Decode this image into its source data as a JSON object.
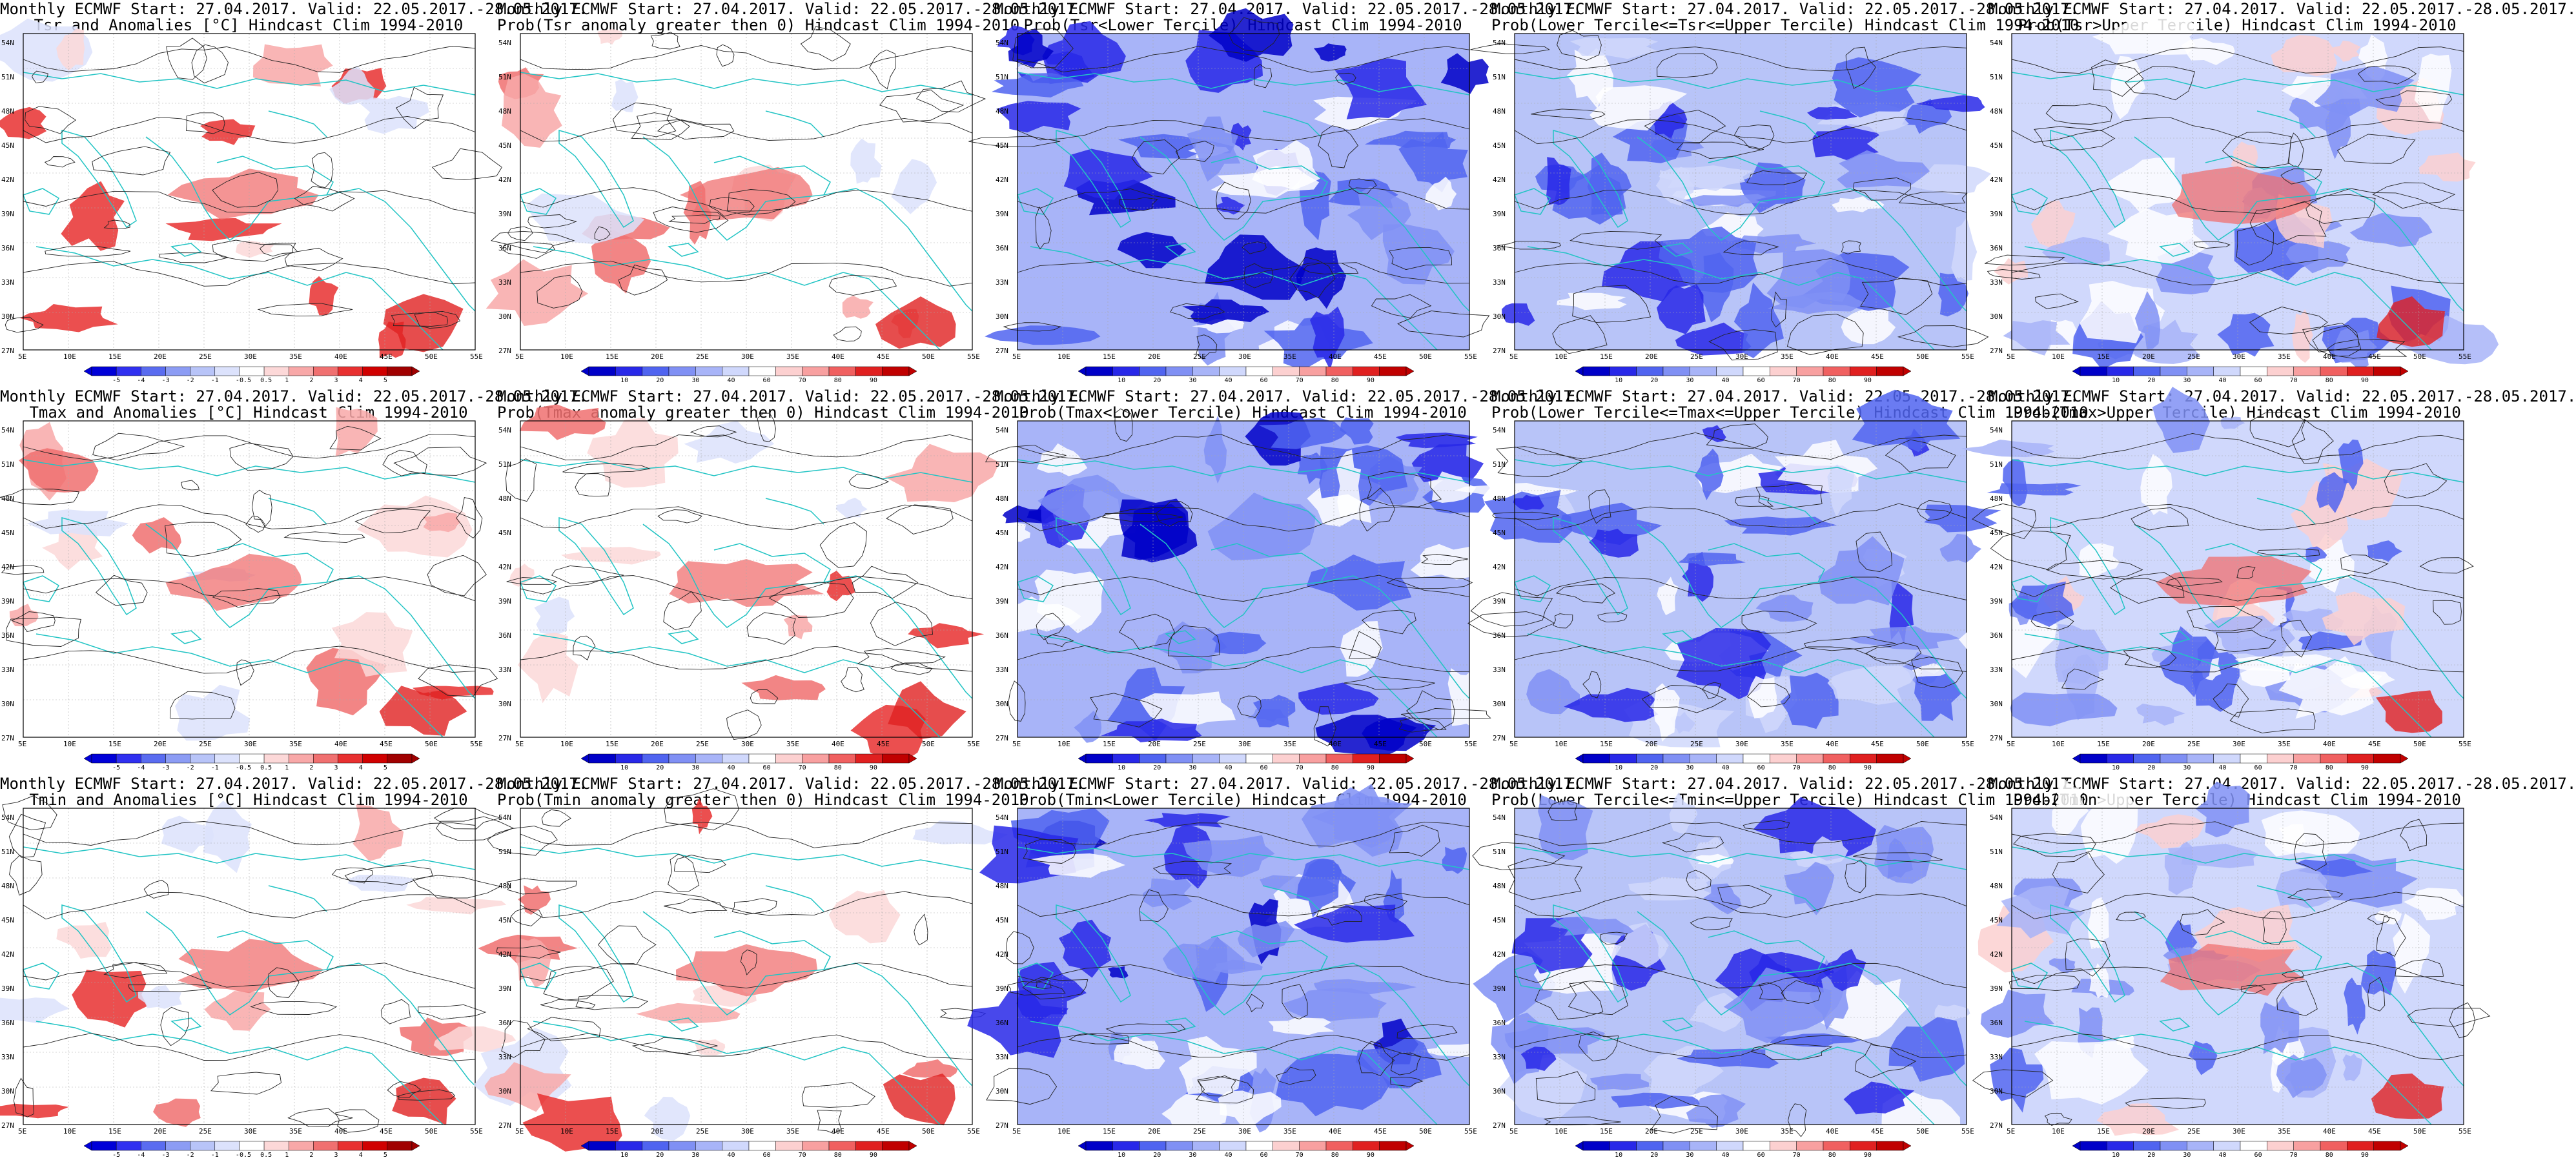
{
  "panels": [
    {
      "title1": "Monthly ECMWF Start: 27.04.2017. Valid: 22.05.2017.-28.05.2017.",
      "title2": "Tsr and Anomalies [°C] Hindcast Clim 1994-2010",
      "kind": "anom",
      "levels": [
        "-5",
        "-4",
        "-3",
        "-2",
        "-1",
        "-0.5",
        "0.5",
        "1",
        "2",
        "3",
        "4",
        "5"
      ]
    },
    {
      "title1": "Monthly ECMWF Start: 27.04.2017. Valid: 22.05.2017.-28.05.2017.",
      "title2": "Prob(Tsr anomaly greater then 0) Hindcast Clim 1994-2010",
      "kind": "probwarm",
      "levels": [
        "10",
        "20",
        "30",
        "40",
        "60",
        "70",
        "80",
        "90"
      ]
    },
    {
      "title1": "Monthly ECMWF Start: 27.04.2017. Valid: 22.05.2017.-28.05.2017.",
      "title2": "Prob(Tsr<Lower Tercile) Hindcast Clim 1994-2010",
      "kind": "lower",
      "levels": [
        "10",
        "20",
        "30",
        "40",
        "60",
        "70",
        "80",
        "90"
      ]
    },
    {
      "title1": "Monthly ECMWF Start: 27.04.2017. Valid: 22.05.2017.-28.05.2017.",
      "title2": "Prob(Lower Tercile<=Tsr<=Upper Tercile) Hindcast Clim 1994-2010",
      "kind": "middle",
      "levels": [
        "10",
        "20",
        "30",
        "40",
        "60",
        "70",
        "80",
        "90"
      ]
    },
    {
      "title1": "Monthly ECMWF Start: 27.04.2017. Valid: 22.05.2017.-28.05.2017.",
      "title2": "Prob(Tsr>Upper Tercile) Hindcast Clim 1994-2010",
      "kind": "upper",
      "levels": [
        "10",
        "20",
        "30",
        "40",
        "60",
        "70",
        "80",
        "90"
      ]
    },
    {
      "title1": "Monthly ECMWF Start: 27.04.2017. Valid: 22.05.2017.-28.05.2017.",
      "title2": "Tmax and Anomalies [°C] Hindcast Clim 1994-2010",
      "kind": "anom",
      "levels": [
        "-5",
        "-4",
        "-3",
        "-2",
        "-1",
        "-0.5",
        "0.5",
        "1",
        "2",
        "3",
        "4",
        "5"
      ]
    },
    {
      "title1": "Monthly ECMWF Start: 27.04.2017. Valid: 22.05.2017.-28.05.2017.",
      "title2": "Prob(Tmax anomaly greater then 0) Hindcast Clim 1994-2010",
      "kind": "probwarm",
      "levels": [
        "10",
        "20",
        "30",
        "40",
        "60",
        "70",
        "80",
        "90"
      ]
    },
    {
      "title1": "Monthly ECMWF Start: 27.04.2017. Valid: 22.05.2017.-28.05.2017.",
      "title2": "Prob(Tmax<Lower Tercile) Hindcast Clim 1994-2010",
      "kind": "lower",
      "levels": [
        "10",
        "20",
        "30",
        "40",
        "60",
        "70",
        "80",
        "90"
      ]
    },
    {
      "title1": "Monthly ECMWF Start: 27.04.2017. Valid: 22.05.2017.-28.05.2017.",
      "title2": "Prob(Lower Tercile<=Tmax<=Upper Tercile) Hindcast Clim 1994-2010",
      "kind": "middle",
      "levels": [
        "10",
        "20",
        "30",
        "40",
        "60",
        "70",
        "80",
        "90"
      ]
    },
    {
      "title1": "Monthly ECMWF Start: 27.04.2017. Valid: 22.05.2017.-28.05.2017.",
      "title2": "Prob(Tmax>Upper Tercile) Hindcast Clim 1994-2010",
      "kind": "upper",
      "levels": [
        "10",
        "20",
        "30",
        "40",
        "60",
        "70",
        "80",
        "90"
      ]
    },
    {
      "title1": "Monthly ECMWF Start: 27.04.2017. Valid: 22.05.2017.-28.05.2017.",
      "title2": "Tmin and Anomalies [°C] Hindcast Clim 1994-2010",
      "kind": "anom",
      "levels": [
        "-5",
        "-4",
        "-3",
        "-2",
        "-1",
        "-0.5",
        "0.5",
        "1",
        "2",
        "3",
        "4",
        "5"
      ]
    },
    {
      "title1": "Monthly ECMWF Start: 27.04.2017. Valid: 22.05.2017.-28.05.2017.",
      "title2": "Prob(Tmin anomaly greater then 0) Hindcast Clim 1994-2010",
      "kind": "probwarm",
      "levels": [
        "10",
        "20",
        "30",
        "40",
        "60",
        "70",
        "80",
        "90"
      ]
    },
    {
      "title1": "Monthly ECMWF Start: 27.04.2017. Valid: 22.05.2017.-28.05.2017.",
      "title2": "Prob(Tmin<Lower Tercile) Hindcast Clim 1994-2010",
      "kind": "lower",
      "levels": [
        "10",
        "20",
        "30",
        "40",
        "60",
        "70",
        "80",
        "90"
      ]
    },
    {
      "title1": "Monthly ECMWF Start: 27.04.2017. Valid: 22.05.2017.-28.05.2017.",
      "title2": "Prob(Lower Tercile<=Tmin<=Upper Tercile) Hindcast Clim 1994-2010",
      "kind": "middle",
      "levels": [
        "10",
        "20",
        "30",
        "40",
        "60",
        "70",
        "80",
        "90"
      ]
    },
    {
      "title1": "Monthly ECMWF Start: 27.04.2017. Valid: 22.05.2017.-28.05.2017.",
      "title2": "Prob(Tmin>Upper Tercile) Hindcast Clim 1994-2010",
      "kind": "upper",
      "levels": [
        "10",
        "20",
        "30",
        "40",
        "60",
        "70",
        "80",
        "90"
      ]
    }
  ],
  "lat_labels": [
    "54N",
    "51N",
    "48N",
    "45N",
    "42N",
    "39N",
    "36N",
    "33N",
    "30N",
    "27N"
  ],
  "lon_labels": [
    "5E",
    "10E",
    "15E",
    "20E",
    "25E",
    "30E",
    "35E",
    "40E",
    "45E",
    "50E",
    "55E"
  ],
  "colors": {
    "coast": "#22c4c4",
    "contour": "#222222",
    "anom_scale": [
      "#0000d8",
      "#3030f0",
      "#5a6cf0",
      "#8c9cf4",
      "#b8c4f8",
      "#dce2fc",
      "#ffffff",
      "#fcd8d8",
      "#f8a8a8",
      "#f07070",
      "#e83030",
      "#d00000",
      "#a00000"
    ],
    "prob_scale": [
      "#0000c8",
      "#2828e8",
      "#5064f0",
      "#8090f4",
      "#a8b4f8",
      "#d0d8fc",
      "#ffffff",
      "#fcd0d0",
      "#f8a0a0",
      "#f06060",
      "#e02020",
      "#c00000"
    ]
  }
}
